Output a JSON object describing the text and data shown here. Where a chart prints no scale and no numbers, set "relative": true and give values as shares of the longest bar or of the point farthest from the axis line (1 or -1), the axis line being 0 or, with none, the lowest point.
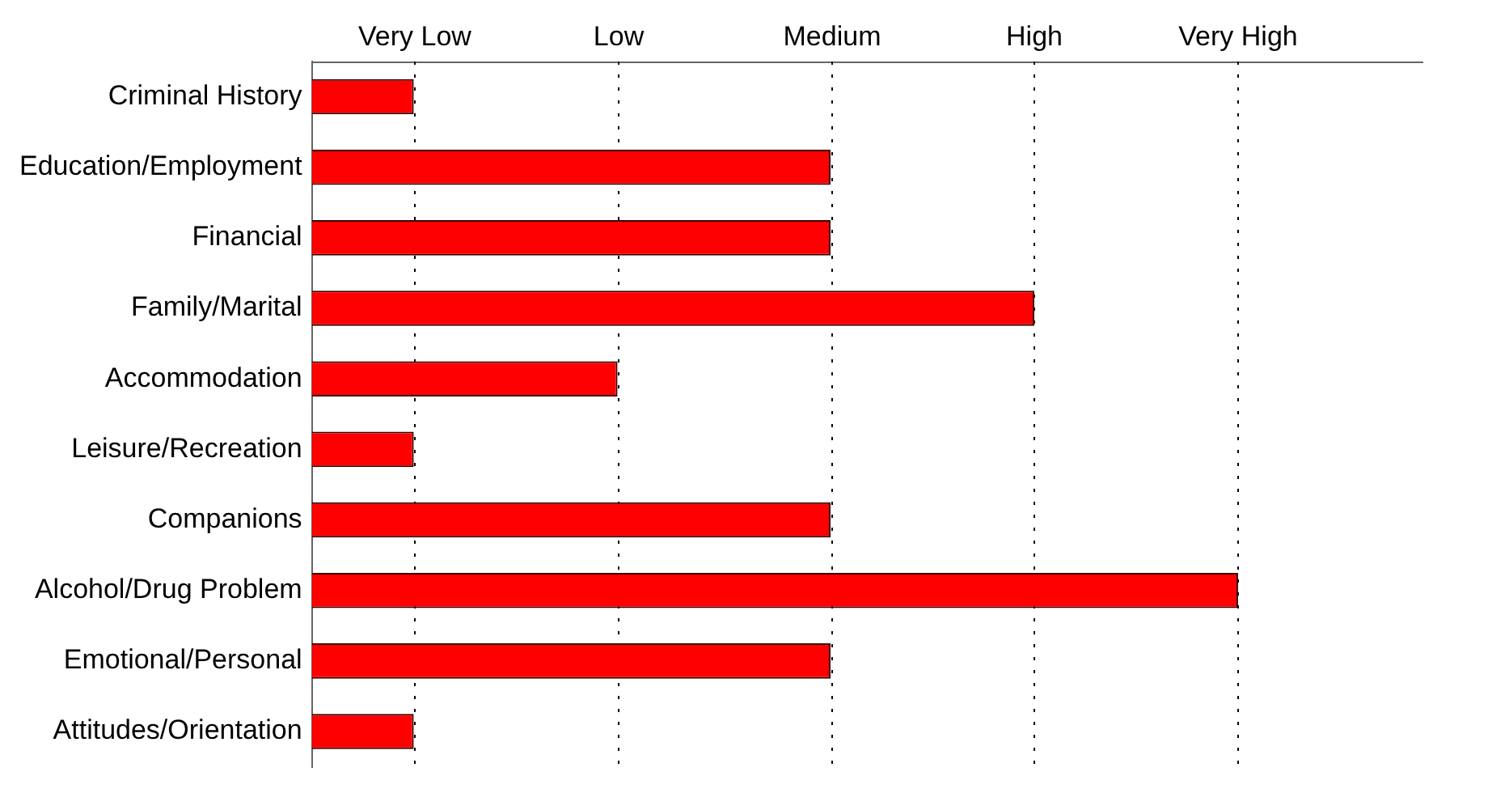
{
  "chart_data": {
    "type": "bar",
    "orientation": "horizontal",
    "relative": true,
    "categories": [
      "Criminal History",
      "Education/Employment",
      "Financial",
      "Family/Marital",
      "Accommodation",
      "Leisure/Recreation",
      "Companions",
      "Alcohol/Drug Problem",
      "Emotional/Personal",
      "Attitudes/Orientation"
    ],
    "values": [
      0.11,
      0.56,
      0.56,
      0.78,
      0.33,
      0.11,
      0.56,
      1,
      0.56,
      0.11
    ],
    "color": "#ff0000",
    "ref_lines": [
      {
        "axis": "x",
        "value": 0.11,
        "label": "Very Low",
        "line_style": "dotted"
      },
      {
        "axis": "x",
        "value": 0.33,
        "label": "Low",
        "line_style": "dotted"
      },
      {
        "axis": "x",
        "value": 0.56,
        "label": "Medium",
        "line_style": "dotted"
      },
      {
        "axis": "x",
        "value": 0.78,
        "label": "High",
        "line_style": "dotted"
      },
      {
        "axis": "x",
        "value": 1,
        "label": "Very High",
        "line_style": "dotted"
      }
    ],
    "legend": false
  }
}
